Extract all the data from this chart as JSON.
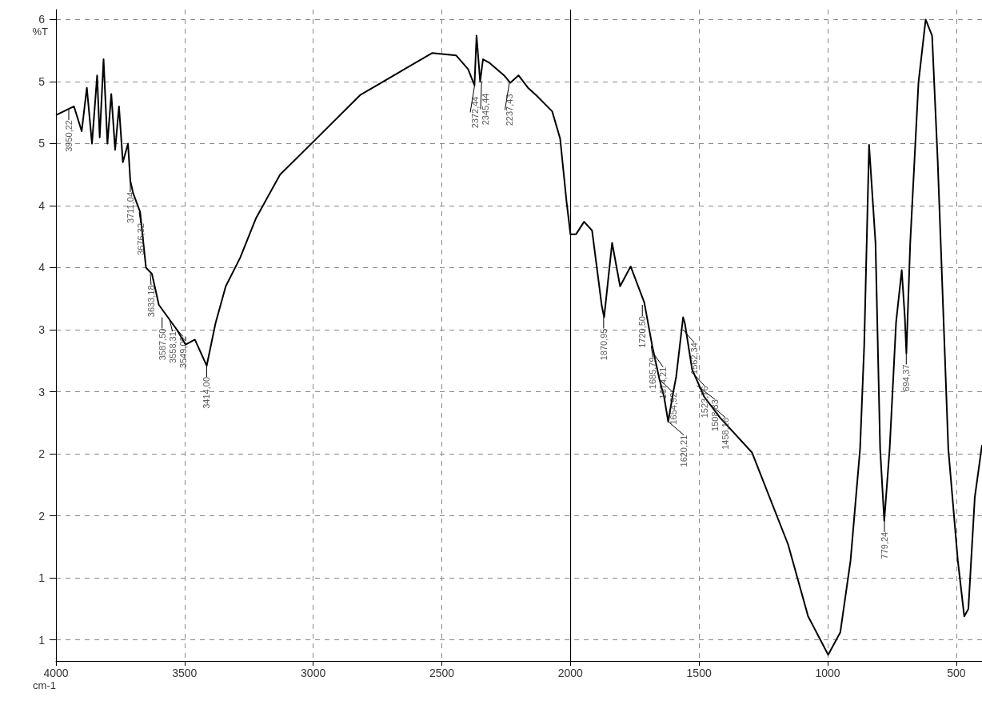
{
  "chart_data": {
    "type": "line",
    "xlabel": "cm-1",
    "ylabel": "%T",
    "xlim": [
      4000,
      400
    ],
    "xticks": [
      4000,
      3500,
      3000,
      2500,
      2000,
      1500,
      1000,
      500
    ],
    "ylim": [
      0.83,
      6.08
    ],
    "yticks": [
      {
        "value": 1,
        "label": "1"
      },
      {
        "value": 1.5,
        "label": "1"
      },
      {
        "value": 2,
        "label": "2"
      },
      {
        "value": 2.5,
        "label": "2"
      },
      {
        "value": 3,
        "label": "3"
      },
      {
        "value": 3.5,
        "label": "3"
      },
      {
        "value": 4,
        "label": "4"
      },
      {
        "value": 4.5,
        "label": "4"
      },
      {
        "value": 5,
        "label": "5"
      },
      {
        "value": 5.5,
        "label": "5"
      },
      {
        "value": 6,
        "label": "6"
      }
    ],
    "grid": true,
    "marker": "none",
    "line_style": "solid",
    "series": [
      {
        "color": "#000000",
        "x": [
          4000,
          3930,
          3900,
          3880,
          3860,
          3840,
          3830,
          3815,
          3800,
          3785,
          3770,
          3755,
          3740,
          3720,
          3711,
          3700,
          3673,
          3650,
          3627,
          3600,
          3565,
          3530,
          3496,
          3460,
          3414,
          3380,
          3340,
          3284,
          3222,
          3129,
          2973,
          2818,
          2662,
          2538,
          2444,
          2398,
          2373,
          2365,
          2351,
          2340,
          2314,
          2258,
          2234,
          2202,
          2165,
          2133,
          2071,
          2040,
          2015,
          2000,
          1978,
          1947,
          1916,
          1878,
          1869,
          1838,
          1807,
          1766,
          1713,
          1682,
          1654,
          1636,
          1620,
          1600,
          1589,
          1562,
          1555,
          1527,
          1480,
          1458,
          1418,
          1294,
          1154,
          1076,
          998,
          951,
          911,
          874,
          858,
          839,
          814,
          796,
          780,
          759,
          734,
          712,
          700,
          694,
          679,
          647,
          619,
          594,
          572,
          531,
          494,
          469,
          453,
          428,
          400
        ],
        "values": [
          5.23,
          5.3,
          5.1,
          5.45,
          5.0,
          5.55,
          5.05,
          5.68,
          5.0,
          5.4,
          4.95,
          5.3,
          4.85,
          5.0,
          4.7,
          4.6,
          4.45,
          4.0,
          3.95,
          3.7,
          3.6,
          3.5,
          3.38,
          3.42,
          3.21,
          3.55,
          3.85,
          4.08,
          4.4,
          4.75,
          5.07,
          5.39,
          5.58,
          5.73,
          5.71,
          5.6,
          5.47,
          5.87,
          5.5,
          5.68,
          5.65,
          5.55,
          5.49,
          5.55,
          5.45,
          5.39,
          5.26,
          5.04,
          4.53,
          4.27,
          4.27,
          4.37,
          4.3,
          3.69,
          3.6,
          4.2,
          3.85,
          4.01,
          3.72,
          3.37,
          3.1,
          2.96,
          2.76,
          3.0,
          3.12,
          3.6,
          3.55,
          3.18,
          2.96,
          2.9,
          2.79,
          2.51,
          1.77,
          1.19,
          0.88,
          1.06,
          1.64,
          2.54,
          3.37,
          4.99,
          4.2,
          2.54,
          1.96,
          2.54,
          3.56,
          3.98,
          3.6,
          3.31,
          4.2,
          5.49,
          6.0,
          5.87,
          4.85,
          2.54,
          1.64,
          1.19,
          1.25,
          2.15,
          2.57
        ]
      }
    ],
    "ref_lines": [
      {
        "axis": "x",
        "value": 2000,
        "color": "#000000",
        "line_style": "solid"
      }
    ],
    "annotations": [
      {
        "text": "3950,22",
        "x": 3950.22,
        "y": 5.28
      },
      {
        "text": "3711,04",
        "x": 3711.04,
        "y": 4.7
      },
      {
        "text": "3676,32",
        "x": 3676.32,
        "y": 4.45
      },
      {
        "text": "3633,18",
        "x": 3633.18,
        "y": 3.95
      },
      {
        "text": "3587,50",
        "x": 3587.5,
        "y": 3.6
      },
      {
        "text": "3558,31",
        "x": 3558.31,
        "y": 3.58
      },
      {
        "text": "3549,02",
        "x": 3549.02,
        "y": 3.55
      },
      {
        "text": "3414,00",
        "x": 3414,
        "y": 3.21
      },
      {
        "text": "2372,44",
        "x": 2372.44,
        "y": 5.47
      },
      {
        "text": "2345,44",
        "x": 2345.44,
        "y": 5.5
      },
      {
        "text": "2237,43",
        "x": 2237.43,
        "y": 5.49
      },
      {
        "text": "1870,95",
        "x": 1870.95,
        "y": 3.6
      },
      {
        "text": "1720,50",
        "x": 1720.5,
        "y": 3.7
      },
      {
        "text": "1685,79",
        "x": 1685.79,
        "y": 3.37
      },
      {
        "text": "1674,21",
        "x": 1674.21,
        "y": 3.3
      },
      {
        "text": "1654,92",
        "x": 1654.92,
        "y": 3.1
      },
      {
        "text": "1620,21",
        "x": 1620.21,
        "y": 2.76
      },
      {
        "text": "1562,34",
        "x": 1562.34,
        "y": 3.5
      },
      {
        "text": "1523,76",
        "x": 1523.76,
        "y": 3.15
      },
      {
        "text": "1508,33",
        "x": 1508.33,
        "y": 3.05
      },
      {
        "text": "1458,18",
        "x": 1458.18,
        "y": 2.9
      },
      {
        "text": "779,24",
        "x": 779.24,
        "y": 1.96
      },
      {
        "text": "694,37",
        "x": 694.37,
        "y": 3.31
      }
    ]
  }
}
